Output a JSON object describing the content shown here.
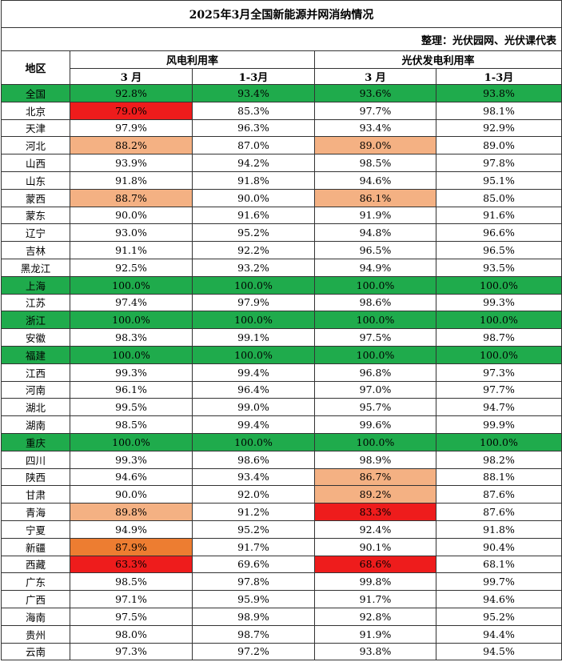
{
  "header": {
    "title": "2025年3月全国新能源并网消纳情况",
    "source": "整理：光伏园网、光伏课代表"
  },
  "table": {
    "region_header": "地区",
    "groups": [
      "风电利用率",
      "光伏发电利用率"
    ],
    "subheaders": [
      "3 月",
      "1-3月",
      "3 月",
      "1-3月"
    ],
    "rows": [
      {
        "region": "全国",
        "values": [
          "92.8%",
          "93.4%",
          "93.6%",
          "93.8%"
        ],
        "fill": "#1fab4c"
      },
      {
        "region": "北京",
        "values": [
          "79.0%",
          "85.3%",
          "97.7%",
          "98.1%"
        ],
        "cell_fills": [
          "#ee1c1c",
          null,
          null,
          null
        ]
      },
      {
        "region": "天津",
        "values": [
          "97.9%",
          "96.3%",
          "93.4%",
          "92.9%"
        ]
      },
      {
        "region": "河北",
        "values": [
          "88.2%",
          "87.0%",
          "89.0%",
          "89.0%"
        ],
        "cell_fills": [
          "#f4b183",
          null,
          "#f4b183",
          null
        ]
      },
      {
        "region": "山西",
        "values": [
          "93.9%",
          "94.2%",
          "98.5%",
          "97.8%"
        ]
      },
      {
        "region": "山东",
        "values": [
          "91.8%",
          "91.8%",
          "94.6%",
          "95.1%"
        ]
      },
      {
        "region": "蒙西",
        "values": [
          "88.7%",
          "90.0%",
          "86.1%",
          "85.0%"
        ],
        "cell_fills": [
          "#f4b183",
          null,
          "#f4b183",
          null
        ]
      },
      {
        "region": "蒙东",
        "values": [
          "90.0%",
          "91.6%",
          "91.9%",
          "91.6%"
        ]
      },
      {
        "region": "辽宁",
        "values": [
          "93.0%",
          "95.2%",
          "94.8%",
          "96.6%"
        ]
      },
      {
        "region": "吉林",
        "values": [
          "91.1%",
          "92.2%",
          "96.5%",
          "96.5%"
        ]
      },
      {
        "region": "黑龙江",
        "values": [
          "92.5%",
          "93.2%",
          "94.9%",
          "93.5%"
        ]
      },
      {
        "region": "上海",
        "values": [
          "100.0%",
          "100.0%",
          "100.0%",
          "100.0%"
        ],
        "fill": "#1fab4c"
      },
      {
        "region": "江苏",
        "values": [
          "97.4%",
          "97.9%",
          "98.6%",
          "99.3%"
        ]
      },
      {
        "region": "浙江",
        "values": [
          "100.0%",
          "100.0%",
          "100.0%",
          "100.0%"
        ],
        "fill": "#1fab4c"
      },
      {
        "region": "安徽",
        "values": [
          "98.3%",
          "99.1%",
          "97.5%",
          "98.7%"
        ]
      },
      {
        "region": "福建",
        "values": [
          "100.0%",
          "100.0%",
          "100.0%",
          "100.0%"
        ],
        "fill": "#1fab4c"
      },
      {
        "region": "江西",
        "values": [
          "99.3%",
          "99.4%",
          "96.8%",
          "97.3%"
        ]
      },
      {
        "region": "河南",
        "values": [
          "96.1%",
          "96.4%",
          "97.0%",
          "97.7%"
        ]
      },
      {
        "region": "湖北",
        "values": [
          "99.5%",
          "99.0%",
          "95.7%",
          "94.7%"
        ]
      },
      {
        "region": "湖南",
        "values": [
          "98.5%",
          "99.4%",
          "99.6%",
          "99.9%"
        ]
      },
      {
        "region": "重庆",
        "values": [
          "100.0%",
          "100.0%",
          "100.0%",
          "100.0%"
        ],
        "fill": "#1fab4c"
      },
      {
        "region": "四川",
        "values": [
          "99.3%",
          "98.6%",
          "98.9%",
          "98.2%"
        ]
      },
      {
        "region": "陕西",
        "values": [
          "94.6%",
          "93.4%",
          "86.7%",
          "88.1%"
        ],
        "cell_fills": [
          null,
          null,
          "#f4b183",
          null
        ]
      },
      {
        "region": "甘肃",
        "values": [
          "90.0%",
          "92.0%",
          "89.2%",
          "87.6%"
        ],
        "cell_fills": [
          null,
          null,
          "#f4b183",
          null
        ]
      },
      {
        "region": "青海",
        "values": [
          "89.8%",
          "91.2%",
          "83.3%",
          "87.6%"
        ],
        "cell_fills": [
          "#f4b183",
          null,
          "#ee1c1c",
          null
        ]
      },
      {
        "region": "宁夏",
        "values": [
          "94.9%",
          "95.2%",
          "92.4%",
          "91.8%"
        ]
      },
      {
        "region": "新疆",
        "values": [
          "87.9%",
          "91.7%",
          "90.1%",
          "90.4%"
        ],
        "cell_fills": [
          "#ed7d31",
          null,
          null,
          null
        ]
      },
      {
        "region": "西藏",
        "values": [
          "63.3%",
          "69.6%",
          "68.6%",
          "68.1%"
        ],
        "cell_fills": [
          "#ee1c1c",
          null,
          "#ee1c1c",
          null
        ]
      },
      {
        "region": "广东",
        "values": [
          "98.5%",
          "97.8%",
          "99.8%",
          "99.7%"
        ]
      },
      {
        "region": "广西",
        "values": [
          "97.1%",
          "95.9%",
          "91.7%",
          "94.6%"
        ]
      },
      {
        "region": "海南",
        "values": [
          "97.5%",
          "98.9%",
          "92.8%",
          "95.2%"
        ]
      },
      {
        "region": "贵州",
        "values": [
          "98.0%",
          "98.7%",
          "91.9%",
          "94.4%"
        ]
      },
      {
        "region": "云南",
        "values": [
          "97.3%",
          "97.2%",
          "93.8%",
          "94.5%"
        ]
      }
    ]
  }
}
